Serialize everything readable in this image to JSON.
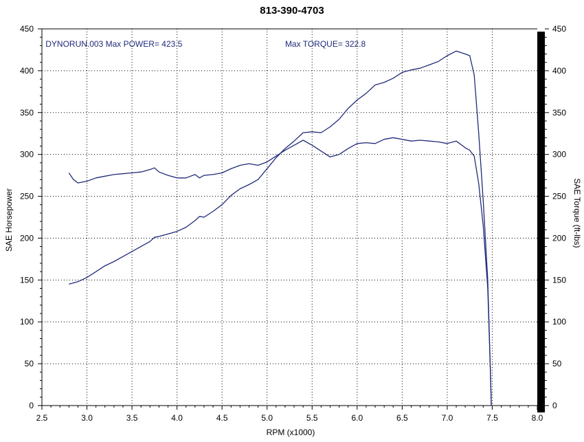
{
  "chart_data": {
    "type": "line",
    "title": "813-390-4703",
    "xlabel": "RPM (x1000)",
    "ylabel_left": "SAE Horsepower",
    "ylabel_right": "SAE Torque (ft-lbs)",
    "xlim": [
      2.5,
      8.0
    ],
    "ylim": [
      0,
      450
    ],
    "grid": true,
    "x_ticks": [
      "2.5",
      "3.0",
      "3.5",
      "4.0",
      "4.5",
      "5.0",
      "5.5",
      "6.0",
      "6.5",
      "7.0",
      "7.5",
      "8.0"
    ],
    "y_ticks": [
      "0",
      "50",
      "100",
      "150",
      "200",
      "250",
      "300",
      "350",
      "400",
      "450"
    ],
    "annotations": [
      {
        "text": "DYNORUN.003  Max POWER= 423.5",
        "x": 2.54,
        "y": 432
      },
      {
        "text": "Max TORQUE= 322.8",
        "x": 5.2,
        "y": 432
      }
    ],
    "series": [
      {
        "color": "#1f2a78",
        "points": [
          [
            2.8,
            145
          ],
          [
            2.9,
            148
          ],
          [
            3.0,
            153
          ],
          [
            3.1,
            160
          ],
          [
            3.2,
            167
          ],
          [
            3.3,
            172
          ],
          [
            3.4,
            178
          ],
          [
            3.5,
            184
          ],
          [
            3.6,
            190
          ],
          [
            3.7,
            196
          ],
          [
            3.75,
            201
          ],
          [
            3.8,
            202
          ],
          [
            3.9,
            205
          ],
          [
            4.0,
            208
          ],
          [
            4.1,
            213
          ],
          [
            4.2,
            221
          ],
          [
            4.25,
            226
          ],
          [
            4.3,
            225
          ],
          [
            4.4,
            232
          ],
          [
            4.5,
            240
          ],
          [
            4.6,
            251
          ],
          [
            4.7,
            259
          ],
          [
            4.8,
            264
          ],
          [
            4.9,
            270
          ],
          [
            5.0,
            283
          ],
          [
            5.1,
            296
          ],
          [
            5.2,
            307
          ],
          [
            5.3,
            316
          ],
          [
            5.4,
            326
          ],
          [
            5.5,
            327
          ],
          [
            5.6,
            326
          ],
          [
            5.7,
            333
          ],
          [
            5.8,
            342
          ],
          [
            5.9,
            355
          ],
          [
            6.0,
            365
          ],
          [
            6.1,
            373
          ],
          [
            6.2,
            383
          ],
          [
            6.3,
            386
          ],
          [
            6.4,
            391
          ],
          [
            6.5,
            398
          ],
          [
            6.6,
            401
          ],
          [
            6.7,
            403
          ],
          [
            6.8,
            407
          ],
          [
            6.9,
            411
          ],
          [
            7.0,
            418
          ],
          [
            7.1,
            423.5
          ],
          [
            7.2,
            420
          ],
          [
            7.25,
            418
          ],
          [
            7.3,
            395
          ],
          [
            7.35,
            325
          ],
          [
            7.4,
            245
          ],
          [
            7.45,
            150
          ],
          [
            7.48,
            40
          ],
          [
            7.49,
            0
          ]
        ]
      },
      {
        "color": "#1f2a78",
        "points": [
          [
            2.8,
            278
          ],
          [
            2.85,
            270
          ],
          [
            2.9,
            266
          ],
          [
            3.0,
            268
          ],
          [
            3.1,
            272
          ],
          [
            3.2,
            274
          ],
          [
            3.3,
            276
          ],
          [
            3.4,
            277
          ],
          [
            3.5,
            278
          ],
          [
            3.6,
            279
          ],
          [
            3.7,
            282
          ],
          [
            3.75,
            284
          ],
          [
            3.8,
            279
          ],
          [
            3.9,
            275
          ],
          [
            4.0,
            272
          ],
          [
            4.1,
            272
          ],
          [
            4.2,
            276
          ],
          [
            4.25,
            272
          ],
          [
            4.3,
            275
          ],
          [
            4.4,
            276
          ],
          [
            4.5,
            278
          ],
          [
            4.6,
            283
          ],
          [
            4.7,
            287
          ],
          [
            4.8,
            289
          ],
          [
            4.9,
            287
          ],
          [
            5.0,
            291
          ],
          [
            5.1,
            298
          ],
          [
            5.2,
            305
          ],
          [
            5.3,
            311
          ],
          [
            5.4,
            317
          ],
          [
            5.5,
            311
          ],
          [
            5.6,
            304
          ],
          [
            5.7,
            297
          ],
          [
            5.8,
            300
          ],
          [
            5.9,
            307
          ],
          [
            6.0,
            313
          ],
          [
            6.1,
            314
          ],
          [
            6.2,
            313
          ],
          [
            6.3,
            318
          ],
          [
            6.4,
            320
          ],
          [
            6.5,
            318
          ],
          [
            6.6,
            316
          ],
          [
            6.7,
            317
          ],
          [
            6.8,
            316
          ],
          [
            6.9,
            315
          ],
          [
            7.0,
            313
          ],
          [
            7.1,
            316
          ],
          [
            7.2,
            308
          ],
          [
            7.25,
            305
          ],
          [
            7.3,
            298
          ],
          [
            7.35,
            265
          ],
          [
            7.4,
            215
          ],
          [
            7.45,
            140
          ],
          [
            7.48,
            40
          ],
          [
            7.49,
            0
          ]
        ]
      }
    ]
  }
}
